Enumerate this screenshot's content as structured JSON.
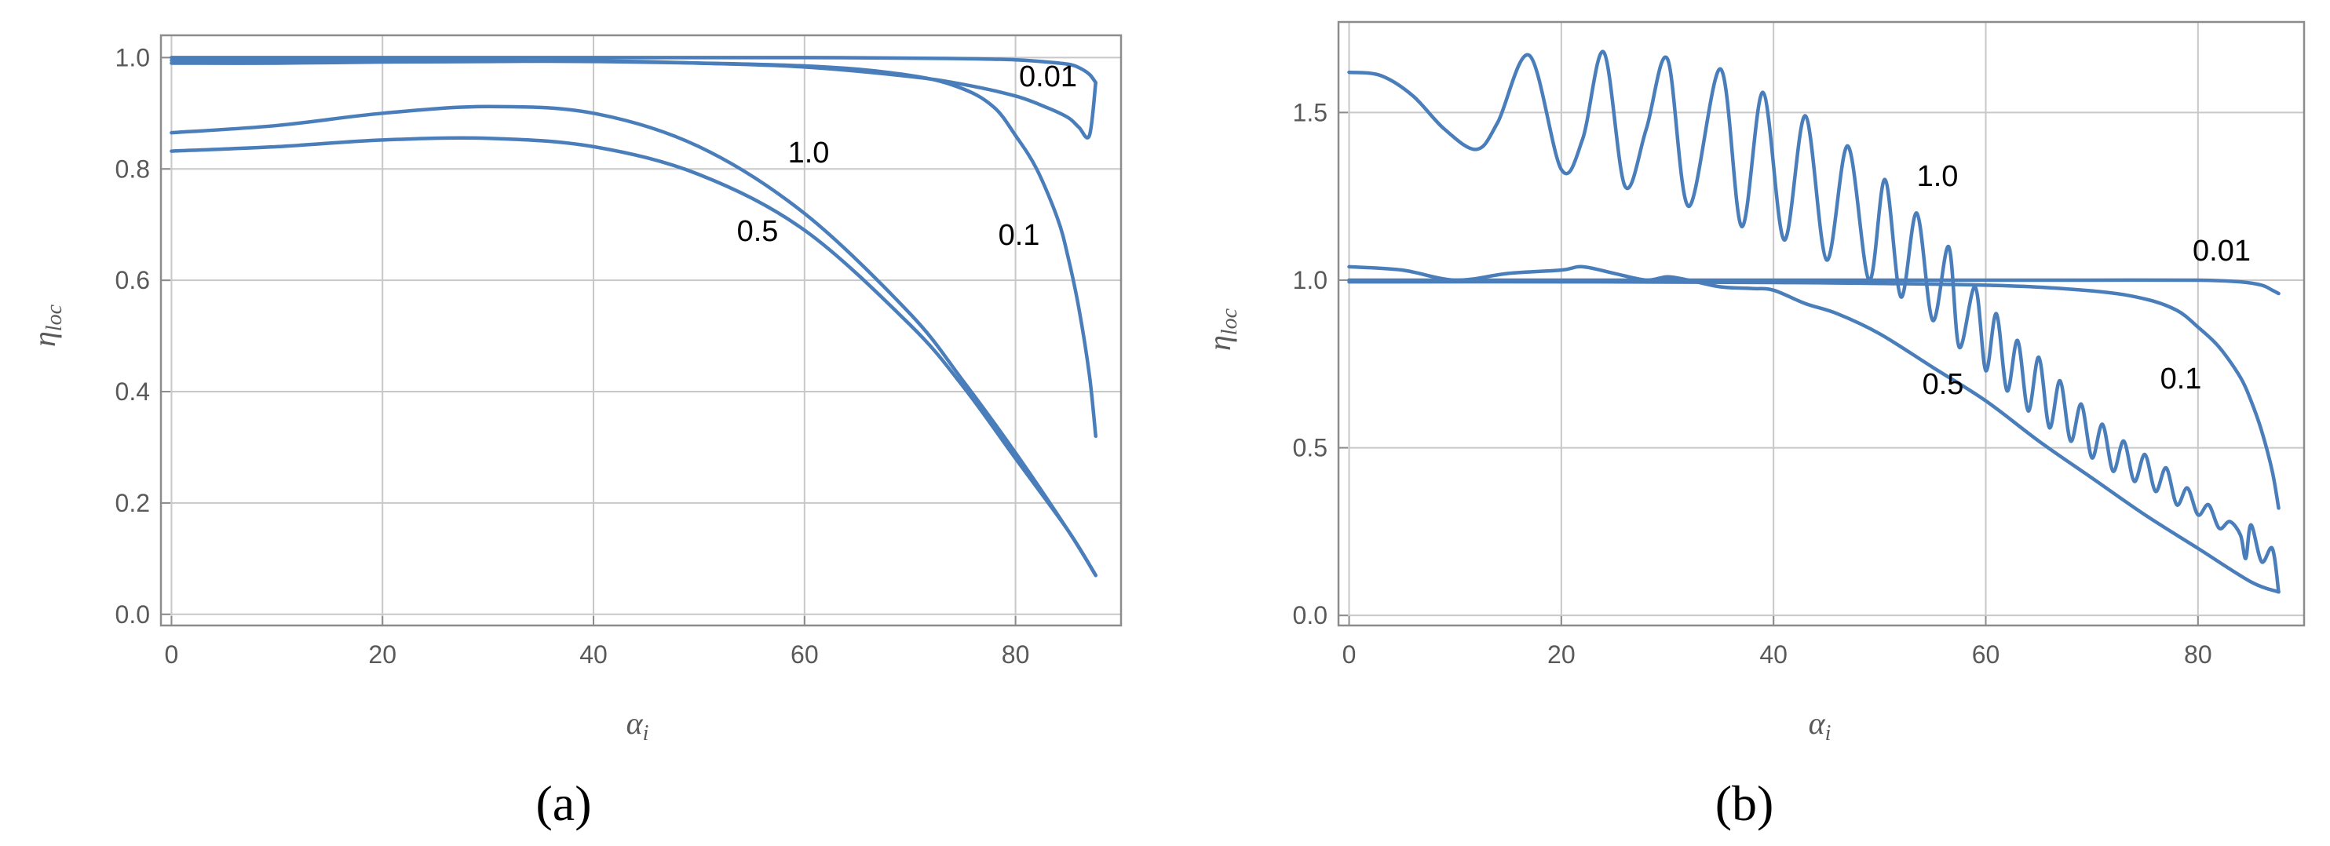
{
  "accent_color": "#4a7ebb",
  "chart_data": [
    {
      "panel_label": "(a)",
      "type": "line",
      "xlabel": "α",
      "xlabel_sub": "i",
      "ylabel": "η",
      "ylabel_sub": "loc",
      "xlim": [
        -1,
        90
      ],
      "ylim": [
        -0.02,
        1.04
      ],
      "xticks": [
        0,
        20,
        40,
        60,
        80
      ],
      "yticks": [
        0.0,
        0.2,
        0.4,
        0.6,
        0.8,
        1.0
      ],
      "xtick_labels": [
        "0",
        "20",
        "40",
        "60",
        "80"
      ],
      "ytick_labels": [
        "0.0",
        "0.2",
        "0.4",
        "0.6",
        "0.8",
        "1.0"
      ],
      "grid": true,
      "series": [
        {
          "name": "0.01",
          "x": [
            0,
            10,
            20,
            30,
            40,
            50,
            60,
            70,
            75,
            80,
            83,
            85,
            86,
            87,
            87.6
          ],
          "y": [
            1.0,
            1.0,
            1.0,
            1.0,
            1.0,
            1.0,
            1.0,
            0.999,
            0.998,
            0.996,
            0.992,
            0.988,
            0.982,
            0.97,
            0.955
          ]
        },
        {
          "name": "0.01",
          "x": [
            0,
            10,
            20,
            30,
            40,
            50,
            60,
            70,
            75,
            80,
            83,
            85,
            86,
            87,
            87.6
          ],
          "y": [
            0.99,
            0.99,
            0.992,
            0.993,
            0.994,
            0.99,
            0.983,
            0.966,
            0.952,
            0.931,
            0.91,
            0.892,
            0.875,
            0.86,
            0.955
          ]
        },
        {
          "name": "0.1",
          "x": [
            0,
            20,
            40,
            60,
            70,
            75,
            78,
            80,
            82,
            84,
            85,
            86,
            87,
            87.6
          ],
          "y": [
            0.995,
            0.995,
            0.993,
            0.985,
            0.968,
            0.944,
            0.91,
            0.86,
            0.8,
            0.71,
            0.64,
            0.55,
            0.43,
            0.32
          ]
        },
        {
          "name": "1.0",
          "x": [
            0,
            10,
            20,
            30,
            40,
            50,
            60,
            70,
            75,
            80,
            85,
            87.6
          ],
          "y": [
            0.865,
            0.878,
            0.9,
            0.912,
            0.9,
            0.84,
            0.72,
            0.54,
            0.42,
            0.29,
            0.15,
            0.07
          ]
        },
        {
          "name": "0.5",
          "x": [
            0,
            10,
            20,
            30,
            40,
            50,
            60,
            70,
            75,
            80,
            85,
            87.6
          ],
          "y": [
            0.832,
            0.84,
            0.852,
            0.855,
            0.84,
            0.79,
            0.69,
            0.52,
            0.41,
            0.28,
            0.15,
            0.07
          ]
        }
      ],
      "annotations": [
        "0.01",
        "1.0",
        "0.1",
        "0.5"
      ]
    },
    {
      "panel_label": "(b)",
      "type": "line",
      "xlabel": "α",
      "xlabel_sub": "i",
      "ylabel": "η",
      "ylabel_sub": "loc",
      "xlim": [
        -1,
        90
      ],
      "ylim": [
        -0.03,
        1.77
      ],
      "xticks": [
        0,
        20,
        40,
        60,
        80
      ],
      "yticks": [
        0.0,
        0.5,
        1.0,
        1.5
      ],
      "xtick_labels": [
        "0",
        "20",
        "40",
        "60",
        "80"
      ],
      "ytick_labels": [
        "0.0",
        "0.5",
        "1.0",
        "1.5"
      ],
      "grid": true,
      "series": [
        {
          "name": "1.0",
          "x": [
            0,
            3,
            6,
            9,
            12,
            14,
            17,
            20,
            22,
            24,
            26,
            28,
            30,
            32,
            35,
            37,
            39,
            41,
            43,
            45,
            47,
            49,
            50.5,
            52,
            53.5,
            55,
            56.5,
            57.5,
            59,
            60,
            61,
            62,
            63,
            64,
            65,
            66,
            67,
            68,
            69,
            70,
            71,
            72,
            73,
            74,
            75,
            76,
            77,
            78,
            79,
            80,
            81,
            82,
            83,
            84,
            84.5,
            85,
            86,
            87,
            87.6
          ],
          "y": [
            1.62,
            1.61,
            1.55,
            1.45,
            1.39,
            1.47,
            1.67,
            1.33,
            1.42,
            1.68,
            1.28,
            1.45,
            1.66,
            1.22,
            1.63,
            1.16,
            1.56,
            1.12,
            1.49,
            1.06,
            1.4,
            1.0,
            1.3,
            0.95,
            1.2,
            0.88,
            1.1,
            0.8,
            0.98,
            0.73,
            0.9,
            0.67,
            0.82,
            0.61,
            0.77,
            0.56,
            0.7,
            0.52,
            0.63,
            0.47,
            0.57,
            0.43,
            0.52,
            0.4,
            0.48,
            0.37,
            0.44,
            0.33,
            0.38,
            0.3,
            0.33,
            0.26,
            0.28,
            0.24,
            0.17,
            0.27,
            0.16,
            0.2,
            0.07
          ]
        },
        {
          "name": "0.01",
          "x": [
            0,
            20,
            40,
            60,
            70,
            80,
            84,
            86,
            87,
            87.6
          ],
          "y": [
            1.0,
            1.0,
            1.0,
            1.0,
            1.0,
            1.0,
            0.995,
            0.985,
            0.97,
            0.96
          ]
        },
        {
          "name": "0.1",
          "x": [
            0,
            20,
            40,
            60,
            70,
            75,
            78,
            80,
            82,
            84,
            85,
            86,
            87,
            87.6
          ],
          "y": [
            0.995,
            0.995,
            0.993,
            0.985,
            0.968,
            0.944,
            0.91,
            0.86,
            0.8,
            0.71,
            0.64,
            0.55,
            0.43,
            0.32
          ]
        },
        {
          "name": "0.5",
          "x": [
            0,
            5,
            10,
            15,
            20,
            22,
            25,
            28,
            30,
            32,
            35,
            38,
            40,
            43,
            46,
            50,
            55,
            60,
            65,
            70,
            75,
            80,
            85,
            87.6
          ],
          "y": [
            1.04,
            1.03,
            1.0,
            1.02,
            1.03,
            1.04,
            1.02,
            1.0,
            1.01,
            1.0,
            0.98,
            0.975,
            0.97,
            0.93,
            0.9,
            0.84,
            0.74,
            0.64,
            0.52,
            0.41,
            0.3,
            0.2,
            0.1,
            0.07
          ]
        }
      ],
      "annotations": [
        "1.0",
        "0.01",
        "0.1",
        "0.5"
      ]
    }
  ]
}
